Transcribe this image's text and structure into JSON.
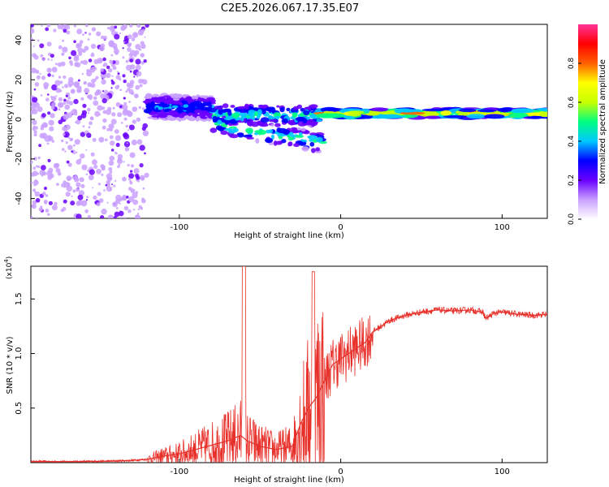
{
  "chart_data": [
    {
      "type": "heatmap",
      "title": "C2E5.2026.067.17.35.E07",
      "xlabel": "Height of straight line (km)",
      "ylabel": "Frequency (Hz)",
      "xlim": [
        -192,
        128
      ],
      "ylim": [
        -50,
        48
      ],
      "xticks": [
        -100,
        0,
        100
      ],
      "xtick_labels": [
        "-100",
        "0",
        "100"
      ],
      "yticks": [
        -40,
        -20,
        0,
        20,
        40
      ],
      "ytick_labels": [
        "-40",
        "-20",
        "0",
        "20",
        "40"
      ],
      "colorbar": {
        "label": "Normalized spectral amplitude",
        "range": [
          0,
          1
        ],
        "ticks": [
          0.0,
          0.2,
          0.4,
          0.6,
          0.8
        ],
        "tick_labels": [
          "0.0",
          "0.2",
          "0.4",
          "0.6",
          "0.8"
        ],
        "colormap": [
          "#ffffff",
          "#c9a0ff",
          "#6a00ff",
          "#0000ff",
          "#00c8ff",
          "#00ff80",
          "#c8ff00",
          "#ffff00",
          "#ff6000",
          "#ff0000",
          "#ff3399"
        ]
      },
      "regions": [
        {
          "name": "noise-field",
          "x_range": [
            -192,
            -120
          ],
          "f_range": [
            -50,
            48
          ],
          "amplitude": 0.15
        },
        {
          "name": "scattered-band",
          "x_range": [
            -120,
            -80
          ],
          "f_center": 6,
          "f_spread": 12,
          "amplitude": 0.4
        },
        {
          "name": "split-band",
          "x_range": [
            -80,
            -10
          ],
          "f_center": 2,
          "f_spread": 10,
          "amplitude": 0.55
        },
        {
          "name": "steady-tone",
          "x_range": [
            -10,
            128
          ],
          "f_center": 3,
          "f_spread": 4,
          "amplitude": 0.9
        }
      ]
    },
    {
      "type": "line",
      "xlabel": "Height of straight line (km)",
      "ylabel": "SNR (10 * v/v)",
      "multiplier_label": "(x10",
      "multiplier_exp": "4",
      "multiplier_close": ")",
      "xlim": [
        -192,
        128
      ],
      "ylim": [
        0,
        1.8
      ],
      "xticks": [
        -100,
        0,
        100
      ],
      "xtick_labels": [
        "-100",
        "0",
        "100"
      ],
      "yticks": [
        0.5,
        1.0,
        1.5
      ],
      "ytick_labels": [
        "0.5",
        "1.0",
        "1.5"
      ],
      "color": "#e8302a",
      "series": [
        {
          "name": "SNR",
          "x": [
            -192,
            -180,
            -160,
            -140,
            -130,
            -120,
            -110,
            -100,
            -90,
            -80,
            -70,
            -62,
            -58,
            -50,
            -40,
            -30,
            -25,
            -20,
            -15,
            -10,
            -5,
            0,
            5,
            10,
            15,
            20,
            30,
            40,
            50,
            60,
            70,
            80,
            88,
            90,
            95,
            100,
            110,
            120,
            128
          ],
          "y": [
            0.01,
            0.01,
            0.01,
            0.015,
            0.02,
            0.03,
            0.06,
            0.08,
            0.12,
            0.16,
            0.2,
            0.25,
            0.2,
            0.15,
            0.12,
            0.15,
            0.35,
            0.5,
            0.6,
            0.75,
            0.9,
            0.95,
            1.0,
            1.05,
            1.1,
            1.2,
            1.3,
            1.35,
            1.38,
            1.4,
            1.39,
            1.4,
            1.38,
            1.32,
            1.37,
            1.38,
            1.36,
            1.35,
            1.36
          ]
        }
      ]
    }
  ]
}
